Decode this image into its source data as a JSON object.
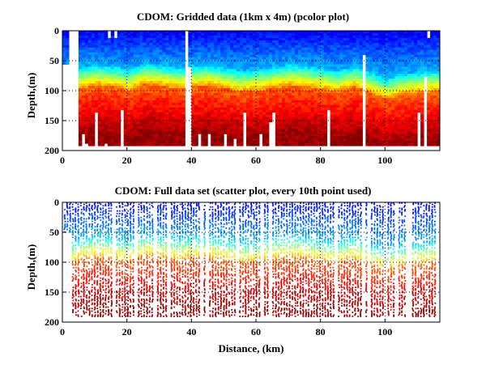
{
  "chart_data": [
    {
      "type": "heatmap",
      "title": "CDOM: Gridded data (1km x 4m) (pcolor plot)",
      "xlabel": "",
      "ylabel": "Depth,(m)",
      "xlim": [
        0,
        117
      ],
      "ylim": [
        200,
        0
      ],
      "xticks": [
        "0",
        "20",
        "40",
        "60",
        "80",
        "100"
      ],
      "yticks": [
        "0",
        "50",
        "100",
        "150",
        "200"
      ],
      "grid": "dotted",
      "colormap": "jet",
      "cell_size": "1km x 4m",
      "transition_depth_profile": {
        "x": [
          0,
          5,
          10,
          15,
          20,
          25,
          30,
          35,
          40,
          45,
          50,
          55,
          60,
          65,
          70,
          75,
          80,
          85,
          90,
          95,
          100,
          105,
          110,
          115
        ],
        "depth": [
          85,
          75,
          70,
          72,
          78,
          68,
          70,
          75,
          72,
          70,
          75,
          80,
          78,
          74,
          70,
          72,
          76,
          80,
          72,
          82,
          92,
          85,
          82,
          80
        ]
      }
    },
    {
      "type": "scatter",
      "title": "CDOM: Full data set (scatter plot, every 10th point used)",
      "xlabel": "Distance, (km)",
      "ylabel": "Depth,(m)",
      "xlim": [
        0,
        117
      ],
      "ylim": [
        200,
        0
      ],
      "xticks": [
        "0",
        "20",
        "40",
        "60",
        "80",
        "100"
      ],
      "yticks": [
        "0",
        "50",
        "100",
        "150",
        "200"
      ],
      "grid": "dotted",
      "colormap": "jet"
    }
  ]
}
